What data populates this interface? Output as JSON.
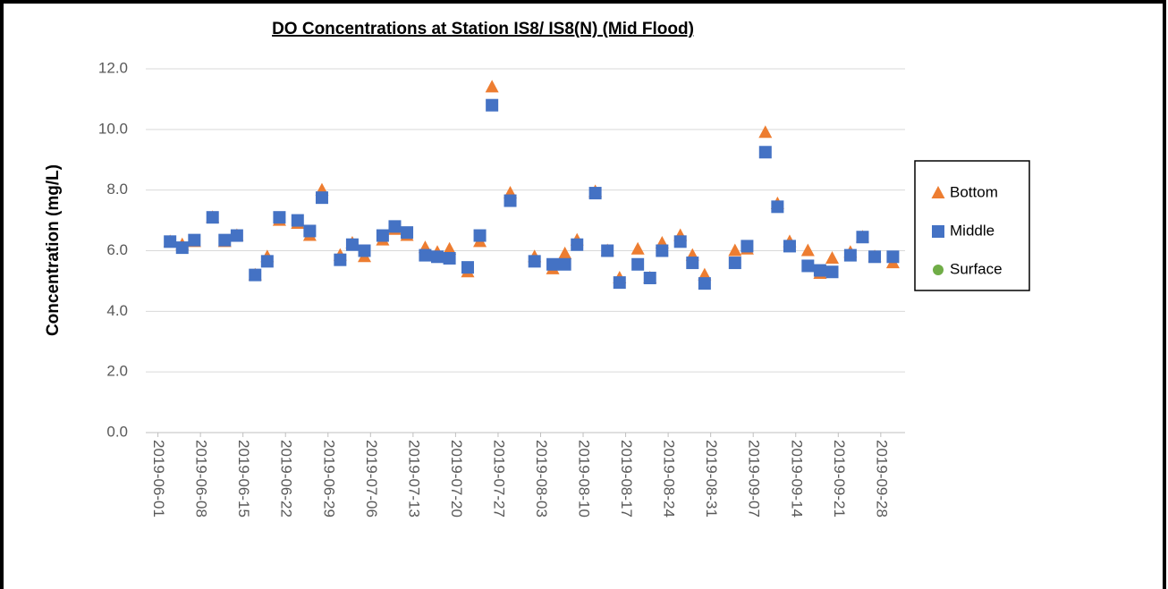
{
  "chart_data": {
    "type": "scatter",
    "title": "DO Concentrations at Station IS8/ IS8(N) (Mid Flood)",
    "y_label": "Concentration (mg/L)",
    "x": [
      "2019-06-03",
      "2019-06-05",
      "2019-06-07",
      "2019-06-10",
      "2019-06-12",
      "2019-06-14",
      "2019-06-17",
      "2019-06-19",
      "2019-06-21",
      "2019-06-24",
      "2019-06-26",
      "2019-06-28",
      "2019-07-01",
      "2019-07-03",
      "2019-07-05",
      "2019-07-08",
      "2019-07-10",
      "2019-07-12",
      "2019-07-15",
      "2019-07-17",
      "2019-07-19",
      "2019-07-22",
      "2019-07-24",
      "2019-07-26",
      "2019-07-29",
      "2019-08-02",
      "2019-08-05",
      "2019-08-07",
      "2019-08-09",
      "2019-08-12",
      "2019-08-14",
      "2019-08-16",
      "2019-08-19",
      "2019-08-21",
      "2019-08-23",
      "2019-08-26",
      "2019-08-28",
      "2019-08-30",
      "2019-09-04",
      "2019-09-06",
      "2019-09-09",
      "2019-09-11",
      "2019-09-13",
      "2019-09-16",
      "2019-09-18",
      "2019-09-20",
      "2019-09-23",
      "2019-09-25",
      "2019-09-27",
      "2019-09-30"
    ],
    "series": [
      {
        "name": "Bottom",
        "color": "#ed7d31",
        "marker": "triangle",
        "values": [
          6.3,
          6.2,
          6.3,
          7.1,
          6.3,
          6.5,
          5.2,
          5.8,
          7.0,
          6.9,
          6.5,
          8.0,
          5.85,
          6.25,
          5.8,
          6.35,
          6.7,
          6.5,
          6.1,
          5.95,
          6.05,
          5.3,
          6.3,
          11.4,
          7.9,
          5.8,
          5.4,
          5.9,
          6.35,
          7.95,
          6.0,
          5.1,
          6.05,
          5.1,
          6.25,
          6.5,
          5.85,
          5.2,
          6.0,
          6.05,
          9.9,
          7.55,
          6.3,
          6.0,
          5.25,
          5.75,
          5.95,
          6.45,
          5.8,
          5.6
        ]
      },
      {
        "name": "Middle",
        "color": "#4472c4",
        "marker": "square",
        "values": [
          6.3,
          6.1,
          6.35,
          7.1,
          6.35,
          6.5,
          5.2,
          5.65,
          7.1,
          7.0,
          6.65,
          7.75,
          5.7,
          6.2,
          6.0,
          6.5,
          6.8,
          6.6,
          5.85,
          5.8,
          5.75,
          5.45,
          6.5,
          10.8,
          7.65,
          5.65,
          5.55,
          5.55,
          6.2,
          7.9,
          6.0,
          4.95,
          5.55,
          5.1,
          6.0,
          6.3,
          5.6,
          4.92,
          5.6,
          6.15,
          9.25,
          7.45,
          6.15,
          5.5,
          5.35,
          5.3,
          5.85,
          6.45,
          5.8,
          5.8
        ]
      },
      {
        "name": "Surface",
        "color": "#70ad47",
        "marker": "circle",
        "values": [
          null,
          null,
          null,
          null,
          null,
          null,
          null,
          null,
          null,
          null,
          null,
          null,
          null,
          null,
          null,
          null,
          null,
          null,
          null,
          null,
          null,
          null,
          null,
          null,
          null,
          null,
          null,
          null,
          null,
          null,
          null,
          null,
          null,
          null,
          null,
          null,
          null,
          null,
          null,
          null,
          null,
          null,
          null,
          null,
          null,
          null,
          null,
          null,
          null,
          null
        ]
      }
    ],
    "xlim": [
      "2019-05-30",
      "2019-10-02"
    ],
    "xticks": [
      "2019-06-01",
      "2019-06-08",
      "2019-06-15",
      "2019-06-22",
      "2019-06-29",
      "2019-07-06",
      "2019-07-13",
      "2019-07-20",
      "2019-07-27",
      "2019-08-03",
      "2019-08-10",
      "2019-08-17",
      "2019-08-24",
      "2019-08-31",
      "2019-09-07",
      "2019-09-14",
      "2019-09-21",
      "2019-09-28"
    ],
    "ylim": [
      0,
      12
    ],
    "yticks": [
      {
        "value": 0,
        "label": "0.0"
      },
      {
        "value": 2,
        "label": "2.0"
      },
      {
        "value": 4,
        "label": "4.0"
      },
      {
        "value": 6,
        "label": "6.0"
      },
      {
        "value": 8,
        "label": "8.0"
      },
      {
        "value": 10,
        "label": "10.0"
      },
      {
        "value": 12,
        "label": "12.0"
      }
    ],
    "grid": true,
    "legend": "right"
  }
}
